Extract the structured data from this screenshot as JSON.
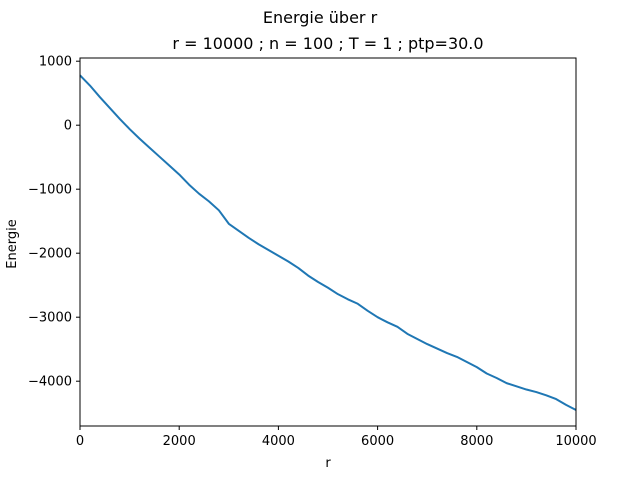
{
  "chart_data": {
    "type": "line",
    "title": "Energie über r",
    "subtitle": "r = 10000 ; n = 100 ; T = 1 ; ptp=30.0",
    "xlabel": "r",
    "ylabel": "Energie",
    "xlim": [
      0,
      10000
    ],
    "ylim": [
      -4700,
      1050
    ],
    "xticks": [
      0,
      2000,
      4000,
      6000,
      8000,
      10000
    ],
    "yticks": [
      1000,
      0,
      -1000,
      -2000,
      -3000,
      -4000
    ],
    "grid": false,
    "series": [
      {
        "color": "#1f77b4",
        "x": [
          0,
          200,
          400,
          600,
          800,
          1000,
          1200,
          1400,
          1600,
          1800,
          2000,
          2200,
          2400,
          2600,
          2800,
          3000,
          3200,
          3400,
          3600,
          3800,
          4000,
          4200,
          4400,
          4600,
          4800,
          5000,
          5200,
          5400,
          5600,
          5800,
          6000,
          6200,
          6400,
          6600,
          6800,
          7000,
          7200,
          7400,
          7600,
          7800,
          8000,
          8200,
          8400,
          8600,
          8800,
          9000,
          9200,
          9400,
          9600,
          9800,
          10000
        ],
        "y": [
          780,
          620,
          440,
          270,
          100,
          -60,
          -210,
          -350,
          -490,
          -630,
          -770,
          -930,
          -1070,
          -1190,
          -1330,
          -1540,
          -1650,
          -1760,
          -1860,
          -1950,
          -2040,
          -2130,
          -2230,
          -2350,
          -2450,
          -2540,
          -2640,
          -2720,
          -2790,
          -2900,
          -3000,
          -3080,
          -3150,
          -3260,
          -3340,
          -3420,
          -3490,
          -3560,
          -3620,
          -3700,
          -3780,
          -3880,
          -3950,
          -4030,
          -4080,
          -4130,
          -4170,
          -4220,
          -4280,
          -4370,
          -4450
        ]
      }
    ]
  }
}
